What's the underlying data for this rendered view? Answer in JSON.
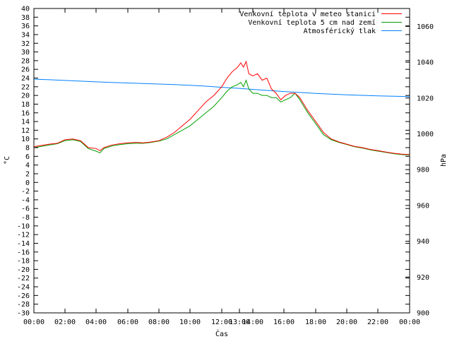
{
  "chart_data": {
    "type": "line",
    "title": "",
    "xlabel": "Čas",
    "ylabel_left": "°C",
    "ylabel_right": "hPa",
    "xlim": [
      0,
      24
    ],
    "ylim_left": [
      -30,
      40
    ],
    "ylim_right": [
      900,
      1070
    ],
    "x_ticks": [
      "00:00",
      "02:00",
      "04:00",
      "06:00",
      "08:00",
      "10:00",
      "12:00",
      "13:00",
      "14:00",
      "16:00",
      "18:00",
      "20:00",
      "22:00",
      "00:00"
    ],
    "y_ticks_left": [
      "40",
      "38",
      "36",
      "34",
      "32",
      "30",
      "28",
      "26",
      "24",
      "22",
      "20",
      "18",
      "16",
      "14",
      "12",
      "10",
      "8",
      "6",
      "4",
      "2",
      "0",
      "-2",
      "-4",
      "-6",
      "-8",
      "-10",
      "-12",
      "-14",
      "-16",
      "-18",
      "-20",
      "-22",
      "-24",
      "-26",
      "-28",
      "-30"
    ],
    "y_ticks_right": [
      "1060",
      "1040",
      "1020",
      "1000",
      "980",
      "960",
      "940",
      "920",
      "900"
    ],
    "grid": false,
    "legend_position": "top-right",
    "series": [
      {
        "name": "Venkovní teplota v meteo stanici",
        "color": "#ff0000",
        "axis": "left",
        "x": [
          0,
          0.5,
          1,
          1.5,
          2,
          2.5,
          3,
          3.5,
          4,
          4.25,
          4.5,
          5,
          5.5,
          6,
          6.5,
          7,
          7.5,
          8,
          8.5,
          9,
          9.5,
          10,
          10.5,
          11,
          11.5,
          12,
          12.3,
          12.6,
          12.9,
          13.1,
          13.3,
          13.5,
          13.7,
          14,
          14.3,
          14.6,
          14.9,
          15.2,
          15.5,
          15.8,
          16.1,
          16.4,
          16.7,
          17,
          17.5,
          18,
          18.5,
          19,
          19.5,
          20,
          20.5,
          21,
          21.5,
          22,
          22.5,
          23,
          23.5,
          24
        ],
        "values": [
          8.2,
          8.5,
          8.8,
          9.0,
          9.8,
          10.0,
          9.6,
          8.0,
          7.8,
          7.3,
          8.0,
          8.6,
          8.9,
          9.1,
          9.2,
          9.1,
          9.3,
          9.6,
          10.4,
          11.5,
          13.0,
          14.5,
          16.5,
          18.5,
          20.0,
          22.0,
          24.0,
          25.5,
          26.5,
          27.5,
          26.5,
          27.8,
          25.0,
          24.5,
          25.0,
          23.5,
          24.0,
          21.5,
          20.5,
          19.0,
          20.0,
          20.5,
          20.5,
          19.5,
          16.5,
          14.0,
          11.5,
          10.0,
          9.3,
          8.8,
          8.3,
          8.0,
          7.6,
          7.3,
          7.0,
          6.7,
          6.5,
          6.4
        ]
      },
      {
        "name": "Venkovní teplota 5 cm nad zemí",
        "color": "#00a000",
        "axis": "left",
        "x": [
          0,
          0.5,
          1,
          1.5,
          2,
          2.5,
          3,
          3.5,
          4,
          4.25,
          4.5,
          5,
          5.5,
          6,
          6.5,
          7,
          7.5,
          8,
          8.5,
          9,
          9.5,
          10,
          10.5,
          11,
          11.5,
          12,
          12.3,
          12.6,
          12.9,
          13.1,
          13.3,
          13.5,
          13.7,
          14,
          14.3,
          14.6,
          14.9,
          15.2,
          15.5,
          15.8,
          16.1,
          16.4,
          16.7,
          17,
          17.5,
          18,
          18.5,
          19,
          19.5,
          20,
          20.5,
          21,
          21.5,
          22,
          22.5,
          23,
          23.5,
          24
        ],
        "values": [
          8.0,
          8.3,
          8.6,
          8.9,
          9.6,
          9.8,
          9.4,
          7.8,
          7.2,
          6.8,
          7.8,
          8.4,
          8.7,
          8.9,
          9.0,
          9.0,
          9.2,
          9.5,
          10.0,
          11.0,
          12.0,
          13.0,
          14.5,
          16.0,
          17.5,
          19.5,
          21.0,
          22.0,
          22.5,
          23.0,
          22.0,
          23.5,
          21.5,
          20.5,
          20.5,
          20.0,
          20.0,
          19.5,
          19.5,
          18.5,
          19.0,
          19.5,
          20.5,
          19.0,
          16.0,
          13.5,
          11.0,
          9.8,
          9.2,
          8.7,
          8.2,
          7.9,
          7.5,
          7.2,
          6.9,
          6.6,
          6.4,
          6.3
        ]
      },
      {
        "name": "Atmosférický tlak",
        "color": "#0080ff",
        "axis": "right",
        "x": [
          0,
          1,
          2,
          3,
          4,
          5,
          6,
          7,
          8,
          9,
          10,
          11,
          12,
          13,
          14,
          15,
          16,
          17,
          18,
          19,
          20,
          21,
          22,
          23,
          24
        ],
        "values": [
          1030.5,
          1030.2,
          1029.8,
          1029.4,
          1029.0,
          1028.7,
          1028.4,
          1028.1,
          1027.8,
          1027.5,
          1027.1,
          1026.6,
          1026.0,
          1025.4,
          1024.8,
          1024.2,
          1023.6,
          1023.1,
          1022.6,
          1022.2,
          1021.8,
          1021.5,
          1021.2,
          1021.0,
          1020.8
        ]
      }
    ]
  }
}
